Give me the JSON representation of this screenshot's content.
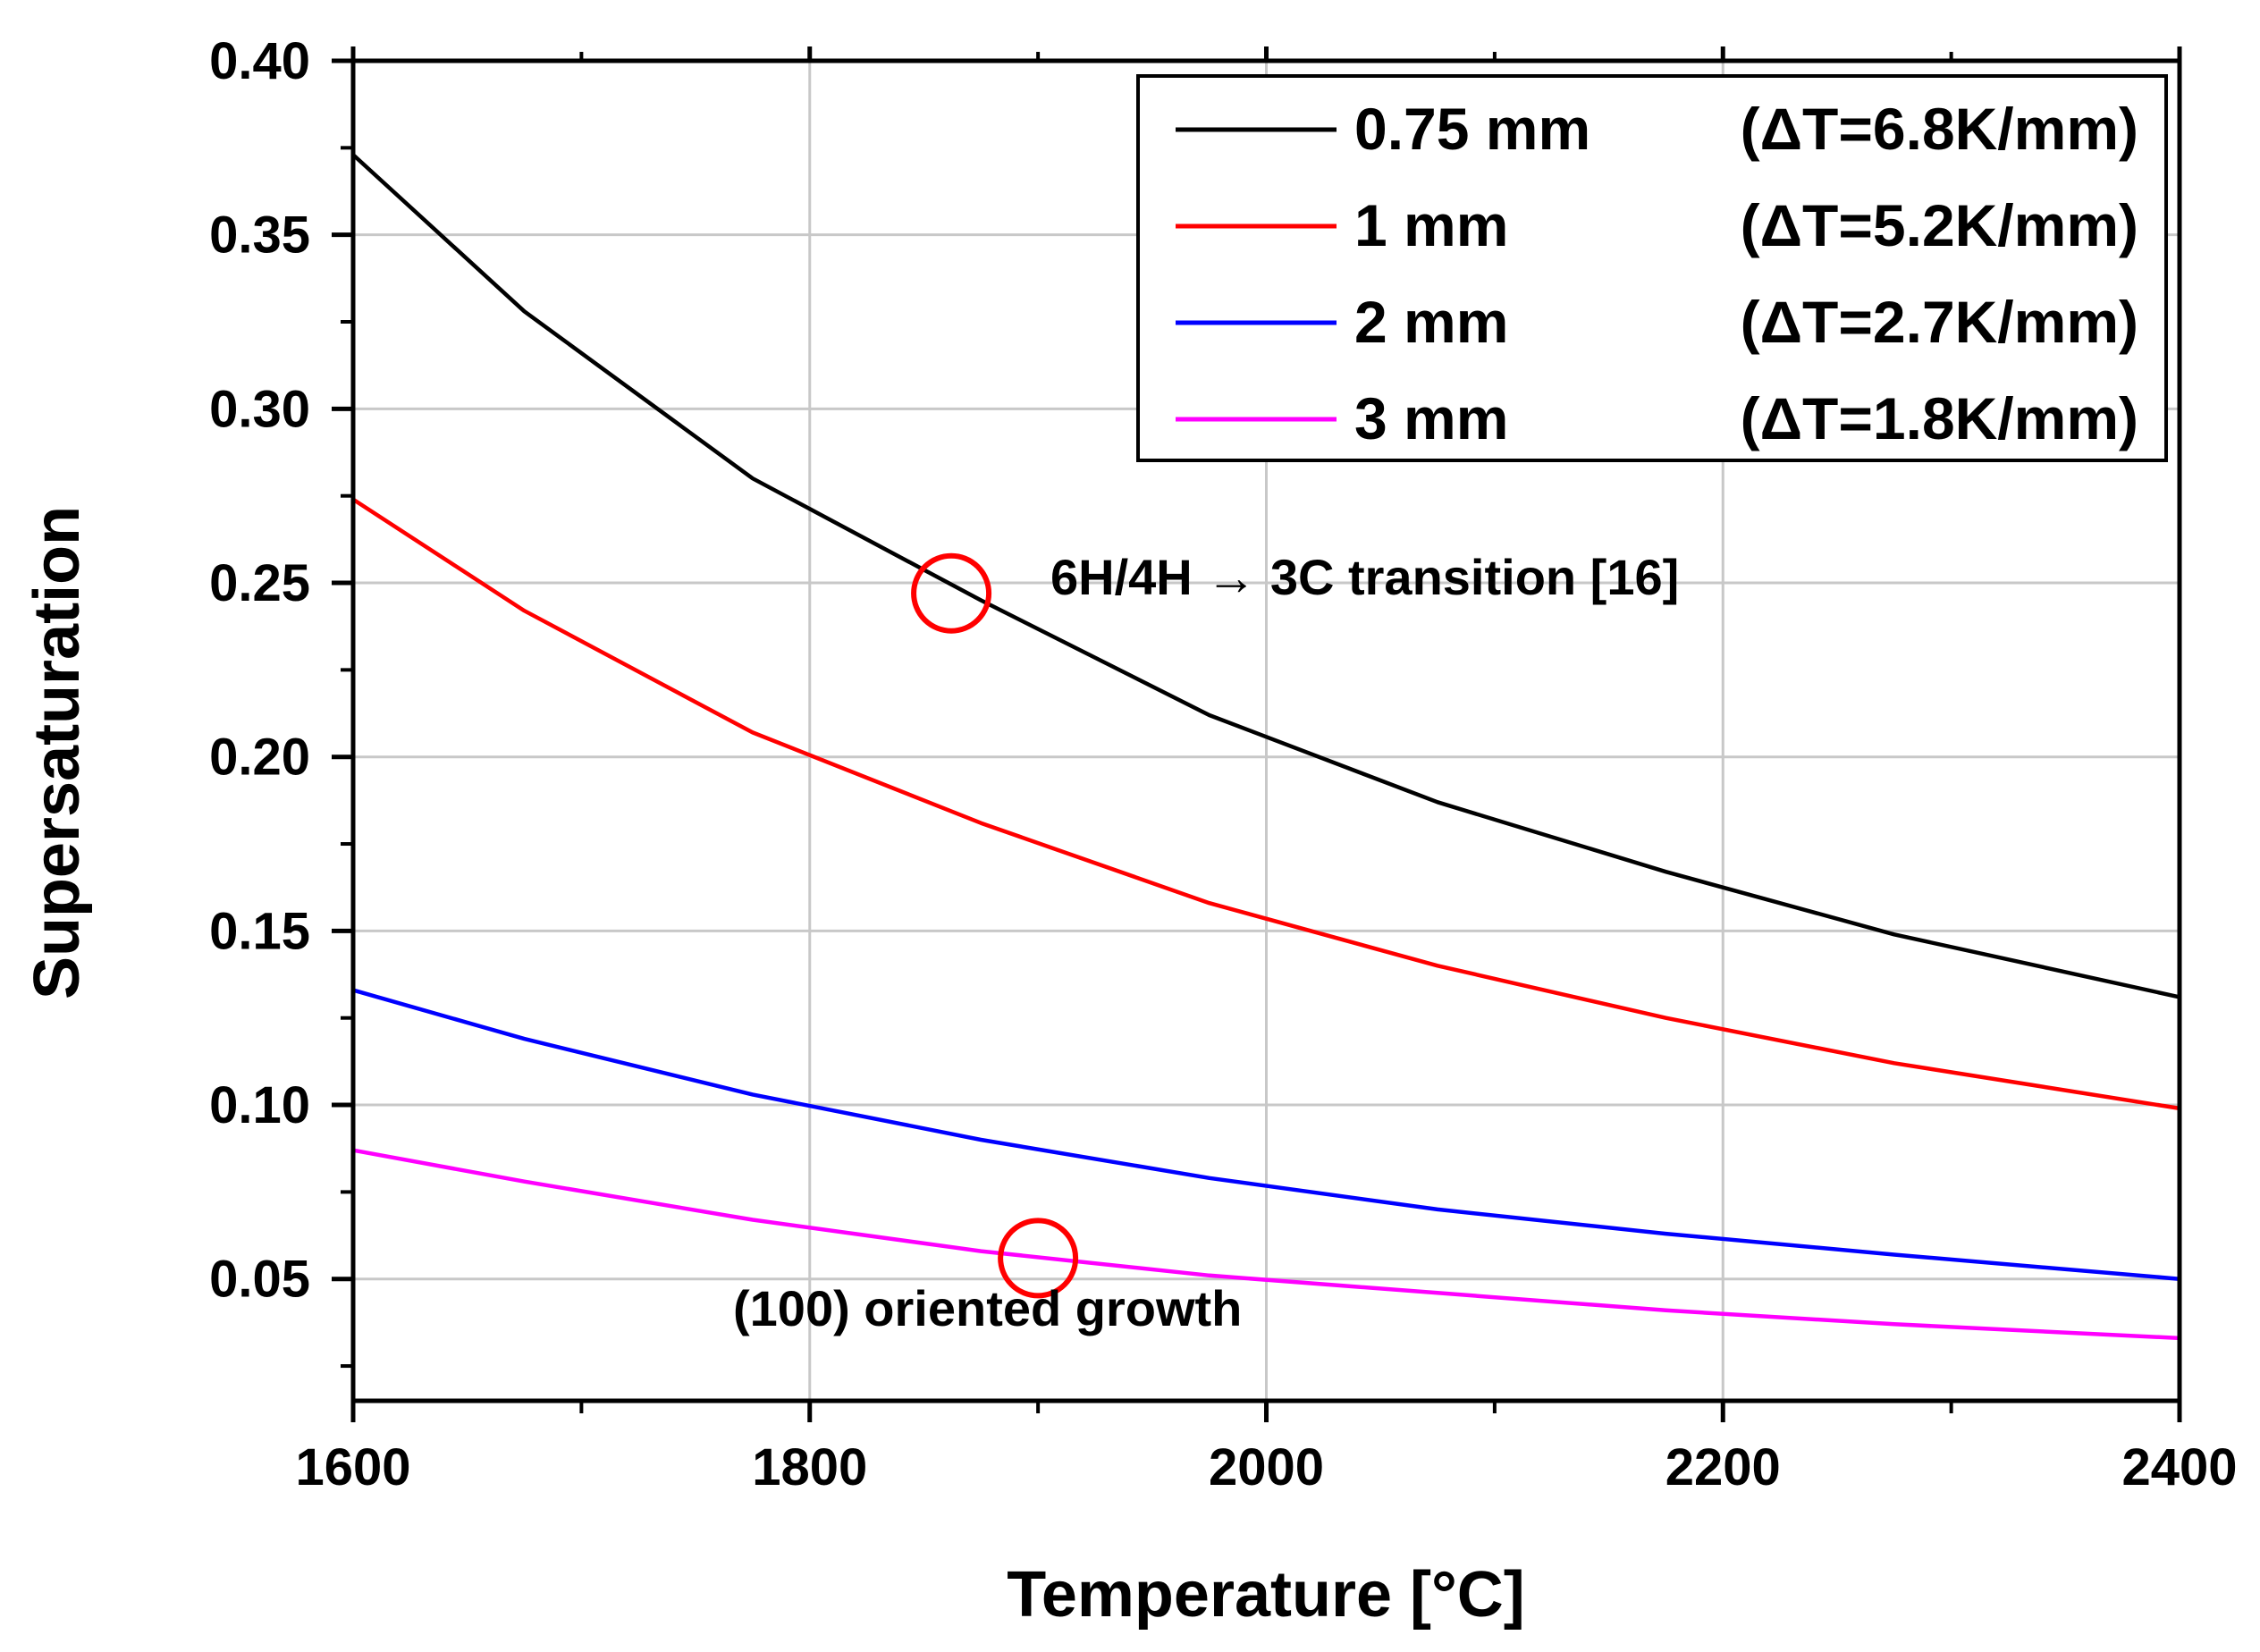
{
  "chart_data": {
    "type": "line",
    "title": "",
    "xlabel": "Temperature [°C]",
    "ylabel": "Supersaturation",
    "xlim": [
      1600,
      2400
    ],
    "ylim": [
      0.015,
      0.4
    ],
    "x_major_ticks": [
      1600,
      1800,
      2000,
      2200,
      2400
    ],
    "x_tick_labels": [
      "1600",
      "1800",
      "2000",
      "2200",
      "2400"
    ],
    "x_minor_ticks": [
      1700,
      1900,
      2100,
      2300
    ],
    "y_major_ticks": [
      0.05,
      0.1,
      0.15,
      0.2,
      0.25,
      0.3,
      0.35,
      0.4
    ],
    "y_tick_labels": [
      "0.05",
      "0.10",
      "0.15",
      "0.20",
      "0.25",
      "0.30",
      "0.35",
      "0.40"
    ],
    "y_minor_ticks": [
      0.025,
      0.075,
      0.125,
      0.175,
      0.225,
      0.275,
      0.325,
      0.375
    ],
    "grid": true,
    "legend_position": "top-right",
    "x": [
      1600,
      1675,
      1775,
      1875,
      1975,
      2075,
      2175,
      2275,
      2400
    ],
    "series": [
      {
        "name": "0.75 mm",
        "label_main": "0.75 mm",
        "label_dt": "(ΔT=6.8K/mm)",
        "color": "#000000",
        "values": [
          0.373,
          0.328,
          0.28,
          0.245,
          0.212,
          0.187,
          0.167,
          0.149,
          0.131
        ]
      },
      {
        "name": "1 mm",
        "label_main": "1 mm",
        "label_dt": "(ΔT=5.2K/mm)",
        "color": "#ff0000",
        "values": [
          0.274,
          0.242,
          0.207,
          0.181,
          0.158,
          0.14,
          0.125,
          0.112,
          0.099
        ]
      },
      {
        "name": "2 mm",
        "label_main": "2 mm",
        "label_dt": "(ΔT=2.7K/mm)",
        "color": "#0000ff",
        "values": [
          0.133,
          0.119,
          0.103,
          0.09,
          0.079,
          0.07,
          0.063,
          0.057,
          0.05
        ]
      },
      {
        "name": "3 mm",
        "label_main": "3 mm",
        "label_dt": "(ΔT=1.8K/mm)",
        "color": "#ff00ff",
        "values": [
          0.087,
          0.078,
          0.067,
          0.058,
          0.051,
          0.046,
          0.041,
          0.037,
          0.033
        ]
      }
    ],
    "annotations": [
      {
        "text": "6H/4H → 3C transition [16]",
        "marker_x": 1862,
        "marker_y": 0.247,
        "marker_color": "#ff0000"
      },
      {
        "text": "(100) oriented growth",
        "marker_x": 1900,
        "marker_y": 0.056,
        "marker_color": "#ff0000"
      }
    ]
  }
}
